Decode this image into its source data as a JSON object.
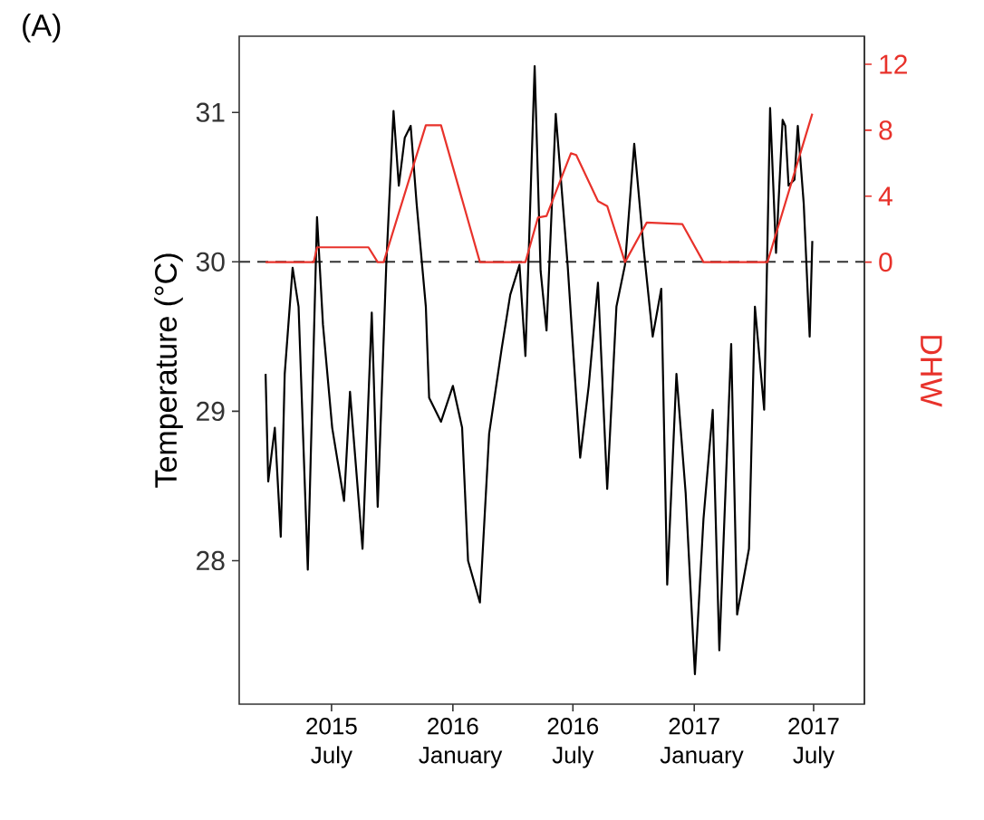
{
  "chart_data": {
    "type": "line",
    "ylabel": "Temperature (°C)",
    "y2label": "DHW",
    "annotations": [
      "(A)"
    ],
    "x": [
      "2015-03-23",
      "2015-03-27",
      "2015-04-06",
      "2015-04-15",
      "2015-04-21",
      "2015-05-03",
      "2015-05-12",
      "2015-05-26",
      "2015-06-09",
      "2015-06-18",
      "2015-07-02",
      "2015-07-20",
      "2015-07-29",
      "2015-08-17",
      "2015-08-31",
      "2015-09-09",
      "2015-09-22",
      "2015-10-03",
      "2015-10-11",
      "2015-10-20",
      "2015-10-29",
      "2015-11-07",
      "2015-11-21",
      "2015-11-26",
      "2015-12-14",
      "2016-01-01",
      "2016-01-15",
      "2016-01-24",
      "2016-02-11",
      "2016-02-25",
      "2016-03-15",
      "2016-03-28",
      "2016-04-11",
      "2016-04-20",
      "2016-05-04",
      "2016-05-13",
      "2016-05-22",
      "2016-06-05",
      "2016-06-23",
      "2016-07-12",
      "2016-07-25",
      "2016-08-08",
      "2016-08-22",
      "2016-09-05",
      "2016-09-18",
      "2016-10-02",
      "2016-10-16",
      "2016-10-30",
      "2016-11-12",
      "2016-11-21",
      "2016-12-05",
      "2016-12-19",
      "2017-01-02",
      "2017-01-15",
      "2017-01-29",
      "2017-02-08",
      "2017-02-26",
      "2017-03-07",
      "2017-03-25",
      "2017-04-03",
      "2017-04-17",
      "2017-04-26",
      "2017-05-05",
      "2017-05-15",
      "2017-05-19",
      "2017-05-24",
      "2017-06-02",
      "2017-06-07",
      "2017-06-16",
      "2017-06-25",
      "2017-06-29"
    ],
    "xlim": [
      "2015-02-11",
      "2017-09-16"
    ],
    "xticks": [
      {
        "value": "2015-07-01",
        "label": "2015 July"
      },
      {
        "value": "2016-01-01",
        "label": "2016 January"
      },
      {
        "value": "2016-07-01",
        "label": "2016 July"
      },
      {
        "value": "2017-01-01",
        "label": "2017 January"
      },
      {
        "value": "2017-07-01",
        "label": "2017 July"
      }
    ],
    "ylim": [
      27.04,
      31.51
    ],
    "yticks": [
      28,
      29,
      30,
      31
    ],
    "y2lim": [
      -26.8,
      13.7
    ],
    "y2ticks": [
      0,
      4,
      8,
      12
    ],
    "series": [
      {
        "color": "#000000",
        "values": [
          29.25,
          28.53,
          28.89,
          28.16,
          29.25,
          29.96,
          29.7,
          27.94,
          30.3,
          29.58,
          28.89,
          28.4,
          29.13,
          28.08,
          29.66,
          28.36,
          29.98,
          31.01,
          30.51,
          30.83,
          30.91,
          30.39,
          29.7,
          29.09,
          28.93,
          29.17,
          28.89,
          28.0,
          27.72,
          28.85,
          29.42,
          29.78,
          29.98,
          29.37,
          31.31,
          29.94,
          29.54,
          30.99,
          29.98,
          28.69,
          29.17,
          29.86,
          28.48,
          29.7,
          29.98,
          30.79,
          30.1,
          29.5,
          29.82,
          27.84,
          29.25,
          28.45,
          27.24,
          28.28,
          29.01,
          27.4,
          29.45,
          27.64,
          28.08,
          29.7,
          29.01,
          31.03,
          30.06,
          30.95,
          30.91,
          30.51,
          30.55,
          30.91,
          30.39,
          29.5,
          30.14
        ]
      },
      {
        "color": "#e8322b",
        "axis": "y2",
        "x": [
          "2015-03-23",
          "2015-06-04",
          "2015-06-09",
          "2015-08-26",
          "2015-09-09",
          "2015-09-18",
          "2015-11-21",
          "2015-12-14",
          "2016-02-11",
          "2016-04-20",
          "2016-05-09",
          "2016-05-22",
          "2016-06-28",
          "2016-07-06",
          "2016-08-08",
          "2016-08-22",
          "2016-09-18",
          "2016-10-21",
          "2016-12-14",
          "2017-01-15",
          "2017-04-22",
          "2017-06-29"
        ],
        "values": [
          0,
          0,
          0.9,
          0.9,
          0,
          0,
          8.3,
          8.3,
          0,
          0,
          2.7,
          2.8,
          6.6,
          6.5,
          3.7,
          3.4,
          0,
          2.4,
          2.3,
          0,
          0,
          9.0
        ]
      }
    ],
    "ref_lines": [
      {
        "axis": "y",
        "value": 30,
        "color": "#333333",
        "line_style": "dashed"
      }
    ],
    "grid": false
  }
}
